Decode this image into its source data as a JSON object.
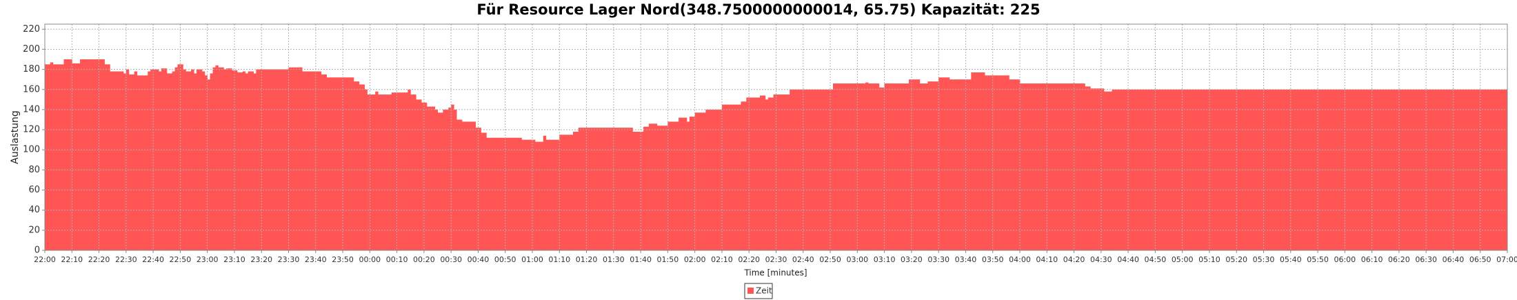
{
  "chart_data": {
    "type": "step-area",
    "title": "Für Resource Lager Nord(348.7500000000014, 65.75) Kapazität: 225",
    "x_label": "Time [minutes]",
    "y_label": "Auslastung",
    "x": [
      0,
      2,
      3,
      7,
      10,
      13,
      22,
      24,
      29,
      30,
      31,
      33,
      34,
      38,
      39,
      42,
      43,
      45,
      47,
      48,
      49,
      51,
      52,
      54,
      55,
      56,
      58,
      59,
      60,
      61,
      62,
      63,
      64,
      66,
      67,
      69,
      71,
      73,
      74,
      75,
      77,
      78,
      90,
      95,
      102,
      104,
      114,
      116,
      118,
      119,
      122,
      123,
      128,
      134,
      135,
      137,
      139,
      141,
      144,
      145,
      147,
      149,
      150,
      151,
      152,
      154,
      159,
      161,
      163,
      176,
      181,
      184,
      185,
      190,
      195,
      197,
      217,
      221,
      223,
      226,
      230,
      234,
      237,
      238,
      240,
      244,
      250,
      257,
      259,
      264,
      266,
      267,
      269,
      275,
      291,
      303,
      304,
      308,
      310,
      319,
      323,
      326,
      330,
      334,
      342,
      347,
      356,
      360,
      384,
      386,
      391,
      394,
      540
    ],
    "series": [
      {
        "name": "Zeit",
        "color": "#ff5555",
        "values": [
          185,
          187,
          185,
          190,
          186,
          190,
          185,
          178,
          176,
          180,
          175,
          178,
          174,
          178,
          180,
          178,
          181,
          176,
          178,
          182,
          185,
          180,
          178,
          180,
          176,
          180,
          178,
          174,
          170,
          176,
          182,
          184,
          182,
          180,
          181,
          179,
          177,
          178,
          176,
          178,
          176,
          180,
          182,
          178,
          175,
          172,
          168,
          165,
          160,
          155,
          158,
          155,
          157,
          160,
          155,
          150,
          147,
          143,
          140,
          137,
          140,
          142,
          145,
          140,
          130,
          128,
          122,
          117,
          112,
          110,
          108,
          114,
          110,
          115,
          118,
          122,
          118,
          123,
          126,
          124,
          128,
          132,
          128,
          133,
          137,
          140,
          145,
          148,
          152,
          154,
          150,
          152,
          155,
          160,
          166,
          167,
          166,
          162,
          166,
          170,
          166,
          168,
          172,
          170,
          177,
          174,
          170,
          166,
          163,
          161,
          158,
          160,
          160
        ]
      }
    ],
    "xlim": [
      0,
      540
    ],
    "ylim": [
      0,
      225
    ],
    "xticks": [
      {
        "value": 0,
        "label": "22:00"
      },
      {
        "value": 10,
        "label": "22:10"
      },
      {
        "value": 20,
        "label": "22:20"
      },
      {
        "value": 30,
        "label": "22:30"
      },
      {
        "value": 40,
        "label": "22:40"
      },
      {
        "value": 50,
        "label": "22:50"
      },
      {
        "value": 60,
        "label": "23:00"
      },
      {
        "value": 70,
        "label": "23:10"
      },
      {
        "value": 80,
        "label": "23:20"
      },
      {
        "value": 90,
        "label": "23:30"
      },
      {
        "value": 100,
        "label": "23:40"
      },
      {
        "value": 110,
        "label": "23:50"
      },
      {
        "value": 120,
        "label": "00:00"
      },
      {
        "value": 130,
        "label": "00:10"
      },
      {
        "value": 140,
        "label": "00:20"
      },
      {
        "value": 150,
        "label": "00:30"
      },
      {
        "value": 160,
        "label": "00:40"
      },
      {
        "value": 170,
        "label": "00:50"
      },
      {
        "value": 180,
        "label": "01:00"
      },
      {
        "value": 190,
        "label": "01:10"
      },
      {
        "value": 200,
        "label": "01:20"
      },
      {
        "value": 210,
        "label": "01:30"
      },
      {
        "value": 220,
        "label": "01:40"
      },
      {
        "value": 230,
        "label": "01:50"
      },
      {
        "value": 240,
        "label": "02:00"
      },
      {
        "value": 250,
        "label": "02:10"
      },
      {
        "value": 260,
        "label": "02:20"
      },
      {
        "value": 270,
        "label": "02:30"
      },
      {
        "value": 280,
        "label": "02:40"
      },
      {
        "value": 290,
        "label": "02:50"
      },
      {
        "value": 300,
        "label": "03:00"
      },
      {
        "value": 310,
        "label": "03:10"
      },
      {
        "value": 320,
        "label": "03:20"
      },
      {
        "value": 330,
        "label": "03:30"
      },
      {
        "value": 340,
        "label": "03:40"
      },
      {
        "value": 350,
        "label": "03:50"
      },
      {
        "value": 360,
        "label": "04:00"
      },
      {
        "value": 370,
        "label": "04:10"
      },
      {
        "value": 380,
        "label": "04:20"
      },
      {
        "value": 390,
        "label": "04:30"
      },
      {
        "value": 400,
        "label": "04:40"
      },
      {
        "value": 410,
        "label": "04:50"
      },
      {
        "value": 420,
        "label": "05:00"
      },
      {
        "value": 430,
        "label": "05:10"
      },
      {
        "value": 440,
        "label": "05:20"
      },
      {
        "value": 450,
        "label": "05:30"
      },
      {
        "value": 460,
        "label": "05:40"
      },
      {
        "value": 470,
        "label": "05:50"
      },
      {
        "value": 480,
        "label": "06:00"
      },
      {
        "value": 490,
        "label": "06:10"
      },
      {
        "value": 500,
        "label": "06:20"
      },
      {
        "value": 510,
        "label": "06:30"
      },
      {
        "value": 520,
        "label": "06:40"
      },
      {
        "value": 530,
        "label": "06:50"
      },
      {
        "value": 540,
        "label": "07:00"
      }
    ],
    "yticks": [
      0,
      20,
      40,
      60,
      80,
      100,
      120,
      140,
      160,
      180,
      200,
      220
    ],
    "grid": true,
    "legend": "bottom"
  }
}
